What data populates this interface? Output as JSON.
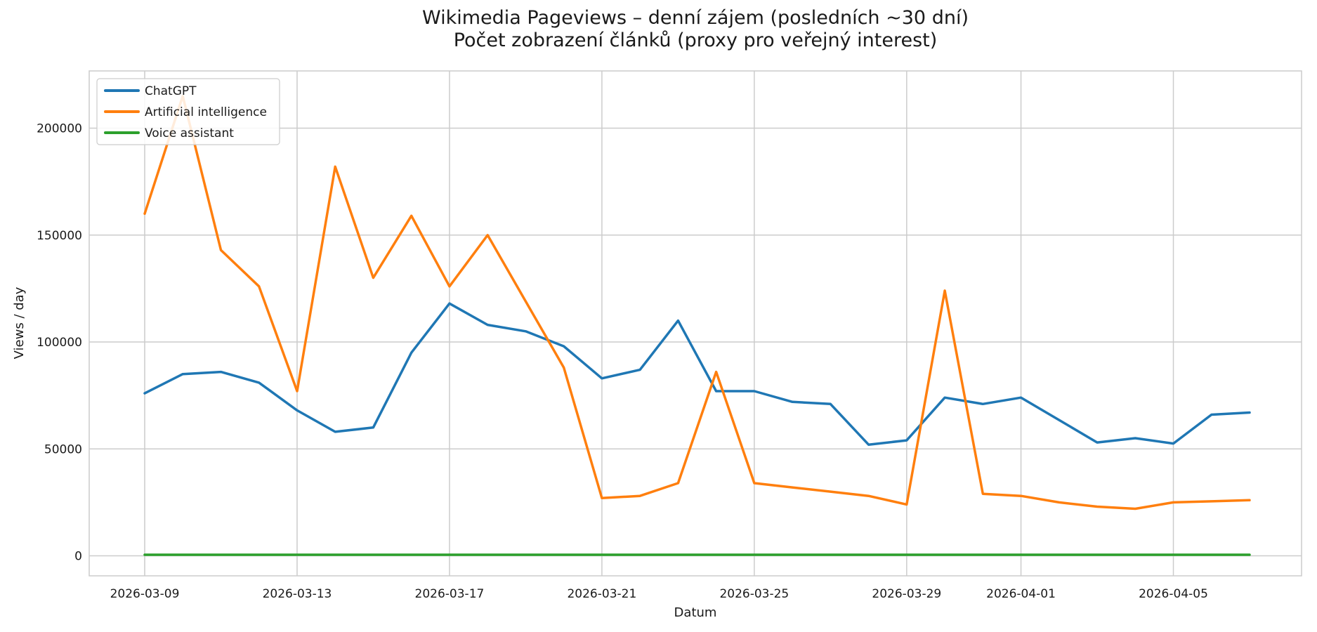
{
  "figure": {
    "background": "#ffffff",
    "grid_color": "#cccccc",
    "border_color": "#cccccc",
    "text_color": "#1a1a1a"
  },
  "chart_data": {
    "type": "line",
    "title": "Wikimedia Pageviews – denní zájem (posledních ~30 dní)",
    "subtitle": "Počet zobrazení článků (proxy pro veřejný interest)",
    "xlabel": "Datum",
    "ylabel": "Views / day",
    "grid": true,
    "legend_position": "upper left",
    "ylim": [
      -10750,
      225750
    ],
    "y_ticks": [
      0,
      50000,
      100000,
      150000,
      200000
    ],
    "y_tick_labels": [
      "0",
      "50000",
      "100000",
      "150000",
      "200000"
    ],
    "x_ticks": [
      {
        "label": "2026-03-09",
        "day_index": 0
      },
      {
        "label": "2026-03-13",
        "day_index": 4
      },
      {
        "label": "2026-03-17",
        "day_index": 8
      },
      {
        "label": "2026-03-21",
        "day_index": 12
      },
      {
        "label": "2026-03-25",
        "day_index": 16
      },
      {
        "label": "2026-03-29",
        "day_index": 20
      },
      {
        "label": "2026-04-01",
        "day_index": 23
      },
      {
        "label": "2026-04-05",
        "day_index": 27
      }
    ],
    "x": [
      "2026-03-09",
      "2026-03-10",
      "2026-03-11",
      "2026-03-12",
      "2026-03-13",
      "2026-03-14",
      "2026-03-15",
      "2026-03-16",
      "2026-03-17",
      "2026-03-18",
      "2026-03-19",
      "2026-03-20",
      "2026-03-21",
      "2026-03-22",
      "2026-03-23",
      "2026-03-24",
      "2026-03-25",
      "2026-03-26",
      "2026-03-27",
      "2026-03-28",
      "2026-03-29",
      "2026-03-30",
      "2026-03-31",
      "2026-04-01",
      "2026-04-02",
      "2026-04-03",
      "2026-04-04",
      "2026-04-05",
      "2026-04-06",
      "2026-04-07"
    ],
    "series": [
      {
        "name": "ChatGPT",
        "color": "#1f77b4",
        "values": [
          76000,
          85000,
          86000,
          81000,
          68000,
          58000,
          60000,
          95000,
          118000,
          108000,
          105000,
          98000,
          83000,
          87000,
          110000,
          77000,
          77000,
          72000,
          71000,
          52000,
          54000,
          74000,
          71000,
          74000,
          63500,
          53000,
          55000,
          52500,
          66000,
          67000
        ]
      },
      {
        "name": "Artificial intelligence",
        "color": "#ff7f0e",
        "values": [
          160000,
          215000,
          143000,
          126000,
          77000,
          182000,
          130000,
          159000,
          126000,
          150000,
          119000,
          88000,
          27000,
          28000,
          34000,
          86000,
          34000,
          32000,
          30000,
          28000,
          24000,
          124000,
          29000,
          28000,
          25000,
          23000,
          22000,
          25000,
          25500,
          26000
        ]
      },
      {
        "name": "Voice assistant",
        "color": "#2ca02c",
        "values": [
          500,
          500,
          500,
          500,
          500,
          500,
          500,
          500,
          500,
          500,
          500,
          500,
          500,
          500,
          500,
          500,
          500,
          500,
          500,
          500,
          500,
          500,
          500,
          500,
          500,
          500,
          500,
          500,
          500,
          500
        ]
      }
    ]
  }
}
